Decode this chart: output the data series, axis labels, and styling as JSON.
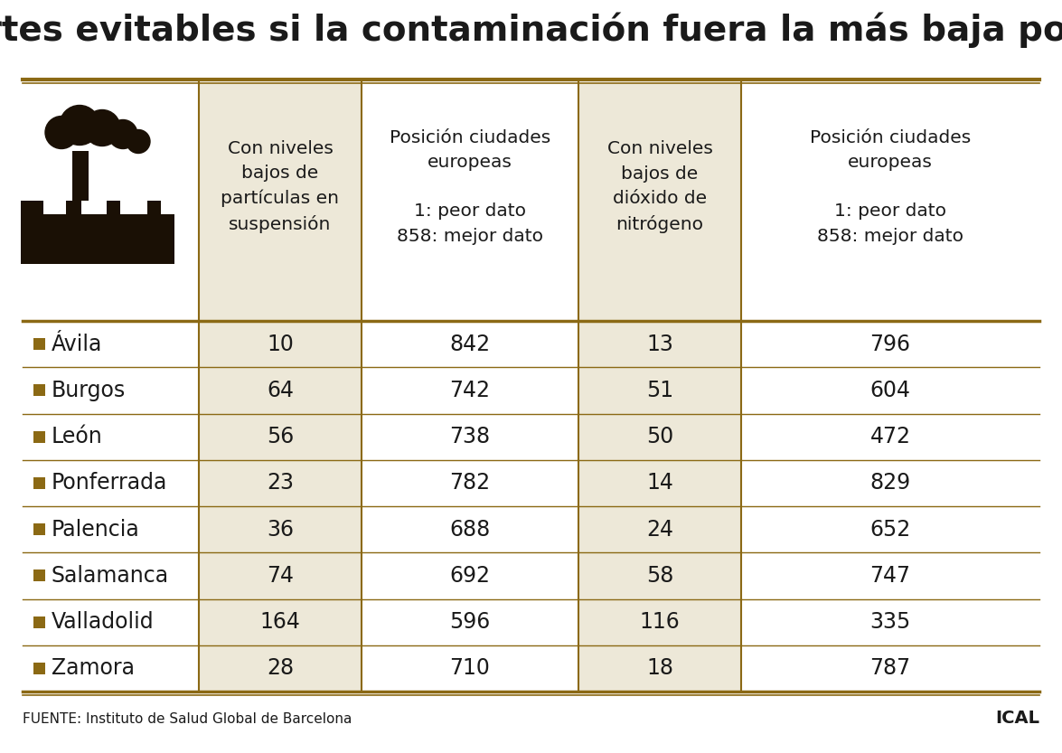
{
  "title": "Muertes evitables si la contaminación fuera la más baja posible",
  "col_headers": [
    "Con niveles\nbajos de\npartículas en\nsuspensión",
    "Posición ciudades\neuropeas\n\n1: peor dato\n858: mejor dato",
    "Con niveles\nbajos de\ndióxido de\nnitrógeno",
    "Posición ciudades\neuropeas\n\n1: peor dato\n858: mejor dato"
  ],
  "cities": [
    "Ávila",
    "Burgos",
    "León",
    "Ponferrada",
    "Palencia",
    "Salamanca",
    "Valladolid",
    "Zamora"
  ],
  "col1": [
    10,
    64,
    56,
    23,
    36,
    74,
    164,
    28
  ],
  "col2": [
    842,
    742,
    738,
    782,
    688,
    692,
    596,
    710
  ],
  "col3": [
    13,
    51,
    50,
    14,
    24,
    58,
    116,
    18
  ],
  "col4": [
    796,
    604,
    472,
    829,
    652,
    747,
    335,
    787
  ],
  "source": "FUENTE: Instituto de Salud Global de Barcelona",
  "logo": "ICAL",
  "bg_color": "#ffffff",
  "header_bg_shaded": "#ede8d8",
  "title_color": "#1a1a1a",
  "text_color": "#1a1a1a",
  "square_color": "#8B6914",
  "line_color": "#8B6914",
  "icon_color": "#1a1005",
  "title_fontsize": 28,
  "header_fontsize": 14.5,
  "cell_fontsize": 17,
  "row_label_fontsize": 17,
  "source_fontsize": 11
}
